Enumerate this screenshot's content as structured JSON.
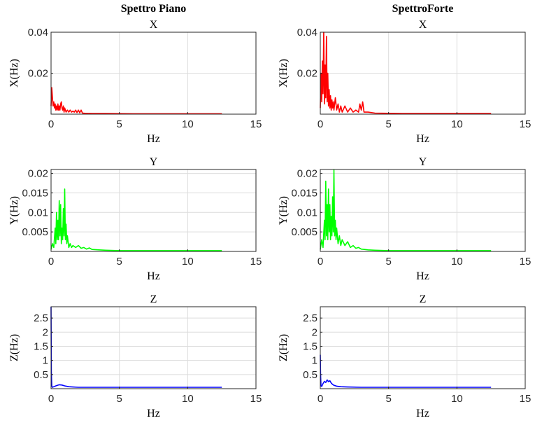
{
  "chart_data": [
    {
      "type": "line",
      "column_title": "Spettro Piano",
      "title": "X",
      "xlabel": "Hz",
      "ylabel": "X(Hz)",
      "xlim": [
        0,
        15
      ],
      "ylim": [
        0,
        0.04
      ],
      "xticks": [
        "0",
        "5",
        "10",
        "15"
      ],
      "yticks": [
        {
          "v": 0.02,
          "label": "0.02"
        },
        {
          "v": 0.04,
          "label": "0.04"
        }
      ],
      "grid": true,
      "color": "#ff0000",
      "series": [
        {
          "x": [
            0,
            0.05,
            0.1,
            0.15,
            0.2,
            0.25,
            0.3,
            0.35,
            0.4,
            0.45,
            0.5,
            0.55,
            0.6,
            0.65,
            0.7,
            0.75,
            0.8,
            0.85,
            0.9,
            0.95,
            1.0,
            1.1,
            1.2,
            1.3,
            1.4,
            1.5,
            1.6,
            1.7,
            1.8,
            1.9,
            2.0,
            2.1,
            2.2,
            2.3,
            2.5,
            3.0,
            4.0,
            6.0,
            8.0,
            10.0,
            12.5
          ],
          "values": [
            0.004,
            0.013,
            0.008,
            0.004,
            0.006,
            0.003,
            0.005,
            0.002,
            0.004,
            0.002,
            0.005,
            0.002,
            0.004,
            0.002,
            0.005,
            0.006,
            0.003,
            0.002,
            0.004,
            0.001,
            0.003,
            0.001,
            0.002,
            0.001,
            0.002,
            0.001,
            0.0015,
            0.001,
            0.002,
            0.0008,
            0.002,
            0.0007,
            0.002,
            0.0005,
            0.0004,
            0.0003,
            0.0003,
            0.0002,
            0.0002,
            0.0002,
            0.0002
          ]
        }
      ]
    },
    {
      "type": "line",
      "column_title": "SpettroForte",
      "title": "X",
      "xlabel": "Hz",
      "ylabel": "X(Hz)",
      "xlim": [
        0,
        15
      ],
      "ylim": [
        0,
        0.04
      ],
      "xticks": [
        "0",
        "5",
        "10",
        "15"
      ],
      "yticks": [
        {
          "v": 0.02,
          "label": "0.02"
        },
        {
          "v": 0.04,
          "label": "0.04"
        }
      ],
      "grid": true,
      "color": "#ff0000",
      "series": [
        {
          "x": [
            0,
            0.05,
            0.1,
            0.15,
            0.2,
            0.25,
            0.3,
            0.35,
            0.4,
            0.45,
            0.5,
            0.55,
            0.6,
            0.65,
            0.7,
            0.75,
            0.8,
            0.85,
            0.9,
            0.95,
            1.0,
            1.1,
            1.2,
            1.3,
            1.4,
            1.5,
            1.6,
            1.8,
            2.0,
            2.2,
            2.4,
            2.6,
            2.8,
            2.9,
            3.0,
            3.1,
            3.2,
            3.5,
            4.0,
            6.0,
            8.0,
            10.0,
            12.5
          ],
          "values": [
            0.003,
            0.02,
            0.006,
            0.026,
            0.01,
            0.04,
            0.005,
            0.024,
            0.008,
            0.038,
            0.006,
            0.02,
            0.004,
            0.012,
            0.003,
            0.009,
            0.002,
            0.007,
            0.003,
            0.006,
            0.002,
            0.008,
            0.002,
            0.005,
            0.001,
            0.004,
            0.001,
            0.004,
            0.001,
            0.003,
            0.001,
            0.002,
            0.001,
            0.005,
            0.002,
            0.006,
            0.001,
            0.001,
            0.0005,
            0.0003,
            0.0003,
            0.0003,
            0.0003
          ]
        }
      ]
    },
    {
      "type": "line",
      "title": "Y",
      "xlabel": "Hz",
      "ylabel": "Y(Hz)",
      "xlim": [
        0,
        15
      ],
      "ylim": [
        0,
        0.021
      ],
      "xticks": [
        "0",
        "5",
        "10",
        "15"
      ],
      "yticks": [
        {
          "v": 0.005,
          "label": "0.005"
        },
        {
          "v": 0.01,
          "label": "0.01"
        },
        {
          "v": 0.015,
          "label": "0.015"
        },
        {
          "v": 0.02,
          "label": "0.02"
        }
      ],
      "grid": true,
      "color": "#00ff00",
      "series": [
        {
          "x": [
            0,
            0.1,
            0.2,
            0.3,
            0.35,
            0.4,
            0.45,
            0.5,
            0.55,
            0.6,
            0.65,
            0.7,
            0.75,
            0.8,
            0.85,
            0.9,
            0.95,
            1.0,
            1.05,
            1.1,
            1.15,
            1.2,
            1.3,
            1.4,
            1.5,
            1.6,
            1.8,
            2.0,
            2.2,
            2.4,
            2.6,
            2.8,
            3.0,
            3.5,
            4.0,
            5.0,
            7.0,
            10.0,
            12.5
          ],
          "values": [
            0.0005,
            0.002,
            0.001,
            0.006,
            0.002,
            0.01,
            0.003,
            0.008,
            0.003,
            0.013,
            0.004,
            0.012,
            0.002,
            0.006,
            0.003,
            0.011,
            0.004,
            0.016,
            0.003,
            0.007,
            0.002,
            0.004,
            0.001,
            0.002,
            0.001,
            0.0015,
            0.001,
            0.0015,
            0.0008,
            0.001,
            0.0006,
            0.0009,
            0.0005,
            0.0004,
            0.0003,
            0.0002,
            0.0002,
            0.0002,
            0.0002
          ]
        }
      ]
    },
    {
      "type": "line",
      "title": "Y",
      "xlabel": "Hz",
      "ylabel": "Y(Hz)",
      "xlim": [
        0,
        15
      ],
      "ylim": [
        0,
        0.021
      ],
      "xticks": [
        "0",
        "5",
        "10",
        "15"
      ],
      "yticks": [
        {
          "v": 0.005,
          "label": "0.005"
        },
        {
          "v": 0.01,
          "label": "0.01"
        },
        {
          "v": 0.015,
          "label": "0.015"
        },
        {
          "v": 0.02,
          "label": "0.02"
        }
      ],
      "grid": true,
      "color": "#00ff00",
      "series": [
        {
          "x": [
            0,
            0.1,
            0.2,
            0.3,
            0.35,
            0.4,
            0.45,
            0.5,
            0.55,
            0.6,
            0.65,
            0.7,
            0.75,
            0.8,
            0.85,
            0.9,
            0.95,
            1.0,
            1.05,
            1.1,
            1.15,
            1.2,
            1.3,
            1.4,
            1.5,
            1.6,
            1.8,
            2.0,
            2.2,
            2.4,
            2.6,
            2.8,
            3.0,
            3.5,
            4.0,
            5.0,
            7.0,
            10.0,
            12.5
          ],
          "values": [
            0.0005,
            0.003,
            0.001,
            0.008,
            0.003,
            0.018,
            0.004,
            0.012,
            0.003,
            0.016,
            0.005,
            0.012,
            0.003,
            0.009,
            0.004,
            0.014,
            0.005,
            0.021,
            0.004,
            0.008,
            0.003,
            0.006,
            0.002,
            0.004,
            0.0015,
            0.003,
            0.0015,
            0.0025,
            0.001,
            0.0015,
            0.0008,
            0.001,
            0.0006,
            0.0004,
            0.0003,
            0.0002,
            0.0002,
            0.0002,
            0.0002
          ]
        }
      ]
    },
    {
      "type": "line",
      "title": "Z",
      "xlabel": "Hz",
      "ylabel": "Z(Hz)",
      "xlim": [
        0,
        15
      ],
      "ylim": [
        0,
        2.9
      ],
      "xticks": [
        "0",
        "5",
        "10",
        "15"
      ],
      "yticks": [
        {
          "v": 0.5,
          "label": "0.5"
        },
        {
          "v": 1,
          "label": "1"
        },
        {
          "v": 1.5,
          "label": "1.5"
        },
        {
          "v": 2,
          "label": "2"
        },
        {
          "v": 2.5,
          "label": "2.5"
        }
      ],
      "grid": true,
      "color": "#0000ff",
      "series": [
        {
          "x": [
            0,
            0.02,
            0.05,
            0.1,
            0.2,
            0.4,
            0.6,
            0.8,
            1.0,
            1.3,
            1.6,
            2.0,
            3.0,
            5.0,
            8.0,
            10.0,
            12.5
          ],
          "values": [
            2.9,
            0.6,
            0.1,
            0.05,
            0.07,
            0.11,
            0.14,
            0.13,
            0.1,
            0.07,
            0.06,
            0.05,
            0.05,
            0.05,
            0.05,
            0.05,
            0.05
          ]
        }
      ]
    },
    {
      "type": "line",
      "title": "Z",
      "xlabel": "Hz",
      "ylabel": "Z(Hz)",
      "xlim": [
        0,
        15
      ],
      "ylim": [
        0,
        2.9
      ],
      "xticks": [
        "0",
        "5",
        "10",
        "15"
      ],
      "yticks": [
        {
          "v": 0.5,
          "label": "0.5"
        },
        {
          "v": 1,
          "label": "1"
        },
        {
          "v": 1.5,
          "label": "1.5"
        },
        {
          "v": 2,
          "label": "2"
        },
        {
          "v": 2.5,
          "label": "2.5"
        }
      ],
      "grid": true,
      "color": "#0000ff",
      "series": [
        {
          "x": [
            0,
            0.02,
            0.05,
            0.1,
            0.2,
            0.3,
            0.4,
            0.5,
            0.6,
            0.7,
            0.8,
            0.9,
            1.0,
            1.2,
            1.5,
            2.0,
            3.0,
            5.0,
            8.0,
            10.0,
            12.5
          ],
          "values": [
            1.2,
            0.5,
            0.1,
            0.08,
            0.18,
            0.26,
            0.22,
            0.31,
            0.25,
            0.28,
            0.2,
            0.15,
            0.12,
            0.09,
            0.07,
            0.06,
            0.05,
            0.05,
            0.05,
            0.05,
            0.05
          ]
        }
      ]
    }
  ]
}
